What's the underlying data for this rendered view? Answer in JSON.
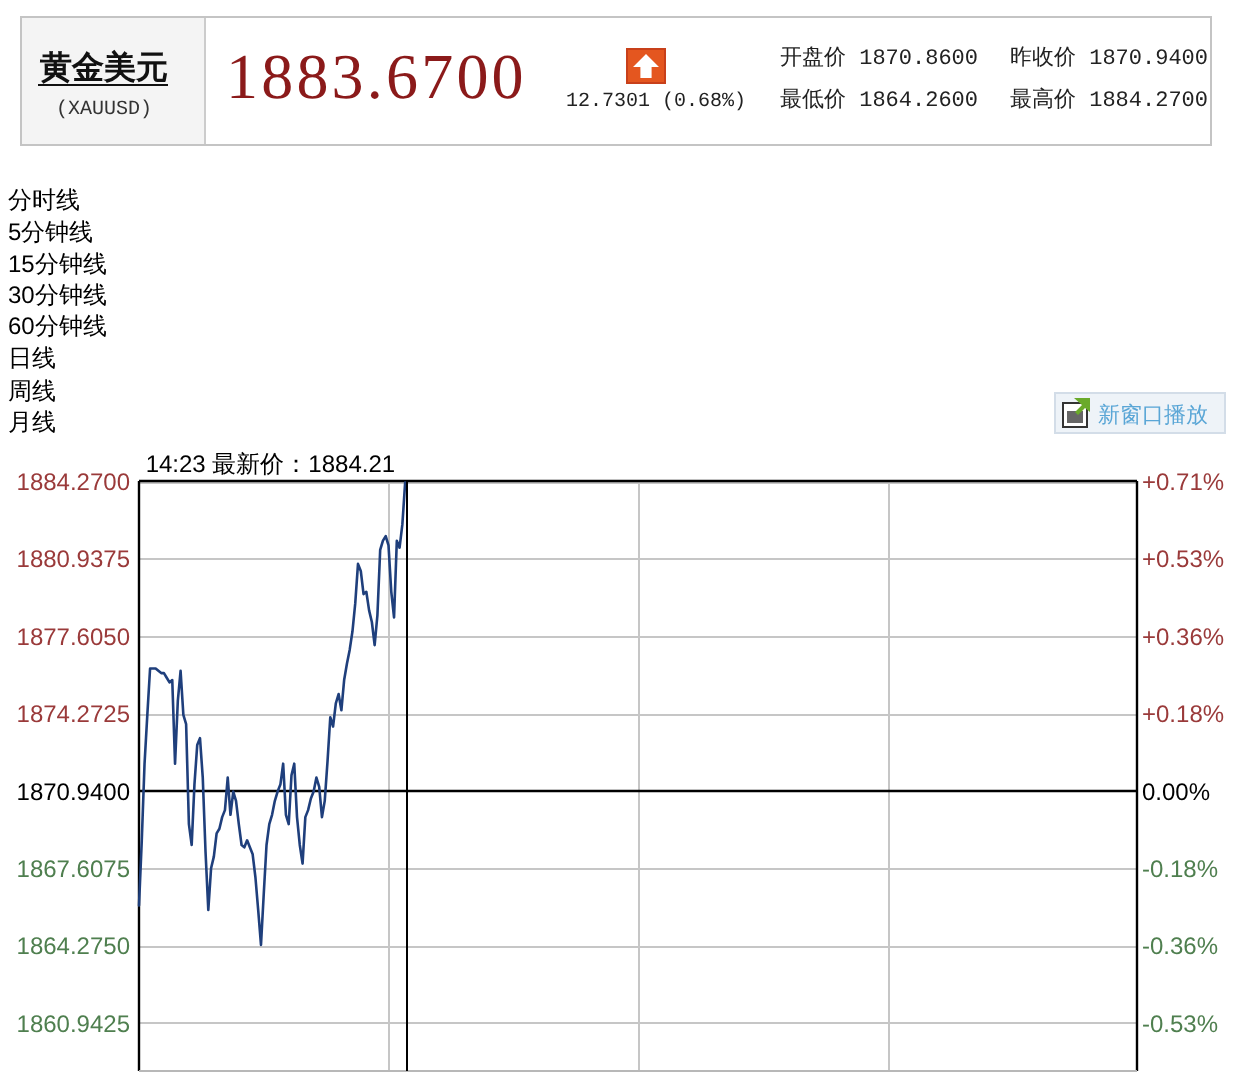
{
  "chart_data": {
    "type": "line",
    "title": "黄金美元",
    "subtitle": "(XAUUSD)",
    "annotations": [
      "1883.6700",
      "12.7301 (0.68%)",
      "开盘价 1870.8600",
      "昨收价 1870.9400",
      "最低价 1864.2600",
      "最高价 1884.2700",
      "分时线",
      "5分钟线",
      "15分钟线",
      "30分钟线",
      "60分钟线",
      "日线",
      "周线",
      "月线",
      "新窗口播放",
      "14:23 最新价：1884.21"
    ],
    "categories": [
      null,
      null,
      null,
      null,
      null,
      null,
      null,
      null,
      null,
      null,
      null,
      null,
      null,
      null,
      null,
      null,
      null,
      null,
      null,
      null,
      null,
      null,
      null,
      null,
      null,
      null,
      null,
      null,
      null,
      null,
      null,
      null,
      null,
      null,
      null,
      null,
      null,
      null,
      null,
      null,
      null,
      null,
      null,
      null,
      null,
      null,
      null,
      null,
      null,
      null,
      null,
      null,
      null,
      null,
      null,
      null,
      null,
      null,
      null,
      null,
      null,
      null,
      null,
      null,
      null,
      null,
      null,
      null,
      null,
      null,
      null,
      null,
      null,
      null,
      null,
      null,
      null,
      null,
      null,
      null,
      null,
      null,
      null,
      null,
      null,
      null,
      null,
      null,
      null,
      null,
      null,
      null,
      null,
      null,
      null,
      null,
      null,
      null,
      null,
      null,
      null,
      null,
      null,
      null,
      null,
      null,
      null,
      null,
      null,
      null,
      null,
      null,
      null,
      null,
      null,
      null,
      null,
      null,
      null,
      null,
      null,
      null,
      null,
      null,
      null,
      null,
      null,
      null,
      null,
      null,
      null,
      null,
      null,
      null,
      null,
      null,
      null,
      null,
      null,
      null,
      null,
      null,
      null,
      null,
      null,
      null,
      null,
      null,
      null,
      null,
      null,
      null,
      null,
      null,
      null,
      null,
      null,
      null,
      null,
      null,
      null,
      null,
      null,
      null,
      null,
      null,
      null,
      null,
      null,
      null,
      null,
      null,
      null,
      null,
      null,
      null,
      null,
      null,
      null,
      null,
      null,
      null,
      null,
      null,
      null,
      null,
      null,
      null,
      null,
      null,
      null,
      null,
      null,
      null,
      null,
      null,
      null,
      null,
      null,
      null,
      null,
      null,
      null,
      null,
      null,
      null,
      null,
      null,
      null,
      null,
      null,
      null,
      null,
      null,
      null,
      null,
      null,
      null,
      null,
      null,
      null,
      null,
      null,
      null,
      null,
      null,
      null,
      null,
      null,
      null,
      null,
      null,
      null,
      null,
      null,
      null,
      null,
      null,
      null,
      null,
      null,
      null,
      null,
      null,
      null,
      null,
      null,
      null,
      null,
      null,
      null,
      null,
      null,
      null,
      null,
      null,
      null,
      null,
      null,
      null,
      null,
      null,
      null,
      null,
      null,
      null,
      null,
      null,
      null,
      null,
      null,
      null,
      null,
      null,
      null,
      null,
      null,
      null,
      null,
      null,
      null,
      null,
      null,
      null,
      null,
      null,
      null,
      null,
      null,
      null,
      null,
      null,
      null,
      null,
      null,
      null,
      null,
      null,
      null,
      null,
      null,
      null,
      null,
      null,
      null,
      null,
      null,
      null,
      null,
      null,
      null,
      null,
      null,
      null,
      null,
      null,
      null,
      null,
      null,
      null,
      null,
      null,
      null,
      null,
      null,
      null,
      null,
      null,
      null,
      null,
      null,
      null,
      null,
      null,
      null,
      null,
      null,
      null,
      null,
      null,
      null,
      null,
      null,
      null,
      null,
      null,
      null,
      null,
      null,
      null,
      null,
      null,
      null,
      null,
      null,
      null,
      null,
      null,
      null,
      null,
      null
    ],
    "values": [
      1866.0,
      1868.8,
      1872.1,
      1874.2,
      1876.2,
      1876.2,
      1876.2,
      1876.1,
      1876.0,
      1876.0,
      1875.8,
      1875.6,
      1875.7,
      1872.1,
      1874.8,
      1876.1,
      1874.2,
      1873.8,
      1869.5,
      1868.6,
      1871.2,
      1872.9,
      1873.2,
      1871.5,
      1868.3,
      1865.8,
      1867.6,
      1868.1,
      1869.1,
      1869.3,
      1869.8,
      1870.1,
      1871.5,
      1869.9,
      1870.9,
      1870.5,
      1869.5,
      1868.6,
      1868.5,
      1868.8,
      1868.5,
      1868.2,
      1867.2,
      1865.8,
      1864.3,
      1866.5,
      1868.6,
      1869.5,
      1869.9,
      1870.5,
      1870.9,
      1871.2,
      1872.1,
      1869.9,
      1869.5,
      1871.6,
      1872.1,
      1869.8,
      1868.6,
      1867.8,
      1869.8,
      1870.1,
      1870.6,
      1870.9,
      1871.5,
      1871.1,
      1869.8,
      1870.5,
      1872.2,
      1874.1,
      1873.7,
      1874.7,
      1875.1,
      1874.4,
      1875.7,
      1876.4,
      1877.0,
      1877.8,
      1879.0,
      1880.7,
      1880.4,
      1879.4,
      1879.5,
      1878.7,
      1878.2,
      1877.2,
      1878.5,
      1881.3,
      1881.7,
      1881.9,
      1881.5,
      1879.5,
      1878.4,
      1881.7,
      1881.4,
      1882.4,
      1884.2,
      null,
      null,
      null,
      null,
      null,
      null,
      null,
      null,
      null,
      null,
      null,
      null,
      null,
      null,
      null,
      null,
      null,
      null,
      null,
      null,
      null,
      null,
      null,
      null,
      null,
      null,
      null,
      null,
      null,
      null,
      null,
      null,
      null,
      null,
      null,
      null,
      null,
      null,
      null,
      null,
      null,
      null,
      null,
      null,
      null,
      null,
      null,
      null,
      null,
      null,
      null,
      null,
      null,
      null,
      null,
      null,
      null,
      null,
      null,
      null,
      null,
      null,
      null,
      null,
      null,
      null,
      null,
      null,
      null,
      null,
      null,
      null,
      null,
      null,
      null,
      null,
      null,
      null,
      null,
      null,
      null,
      null,
      null,
      null,
      null,
      null,
      null,
      null,
      null,
      null,
      null,
      null,
      null,
      null,
      null,
      null,
      null,
      null,
      null,
      null,
      null,
      null,
      null,
      null,
      null,
      null,
      null,
      null,
      null,
      null,
      null,
      null,
      null,
      null,
      null,
      null,
      null,
      null,
      null,
      null,
      null,
      null,
      null,
      null,
      null,
      null,
      null,
      null,
      null,
      null,
      null,
      null,
      null,
      null,
      null,
      null,
      null,
      null,
      null,
      null,
      null,
      null,
      null,
      null,
      null,
      null,
      null,
      null,
      null,
      null,
      null,
      null,
      null,
      null,
      null,
      null,
      null,
      null,
      null,
      null,
      null,
      null,
      null,
      null,
      null,
      null,
      null,
      null,
      null,
      null,
      null,
      null,
      null,
      null,
      null,
      null,
      null,
      null,
      null,
      null,
      null,
      null,
      null,
      null,
      null,
      null,
      null,
      null,
      null,
      null,
      null,
      null,
      null,
      null,
      null,
      null,
      null,
      null,
      null,
      null,
      null,
      null,
      null,
      null,
      null,
      null,
      null,
      null,
      null,
      null,
      null,
      null,
      null,
      null,
      null,
      null,
      null,
      null,
      null,
      null,
      null,
      null,
      null,
      null,
      null,
      null,
      null,
      null,
      null,
      null,
      null,
      null,
      null,
      null,
      null,
      null,
      null,
      null,
      null,
      null,
      null,
      null,
      null,
      null,
      null,
      null,
      null,
      null,
      null,
      null,
      null,
      null,
      null,
      null,
      null,
      null,
      null,
      null,
      null,
      null,
      null,
      null,
      null,
      null
    ],
    "color": "#1f3f7c",
    "ylim": [
      1858.87,
      1884.27
    ],
    "yticks": [
      {
        "value": 1884.27,
        "label": "1884.2700"
      },
      1880.9375,
      {
        "value": 1877.605,
        "label": "1877.6050"
      },
      1874.2725,
      {
        "value": 1870.94,
        "label": "1870.9400"
      },
      1867.6075,
      {
        "value": 1864.275,
        "label": "1864.2750"
      },
      1860.9425
    ],
    "y2lim": [
      -0.6451,
      0.7125
    ],
    "y2ticks": [
      {
        "value": 0.7125,
        "label": "+0.71%"
      },
      {
        "value": 0.5344,
        "label": "+0.53%"
      },
      {
        "value": 0.3562,
        "label": "+0.36%"
      },
      {
        "value": 0.1781,
        "label": "+0.18%"
      },
      {
        "value": 0,
        "label": "0.00%"
      },
      {
        "value": -0.1781,
        "label": "-0.18%"
      },
      {
        "value": -0.3562,
        "label": "-0.36%"
      },
      {
        "value": -0.5344,
        "label": "-0.53%"
      }
    ],
    "grid": true,
    "ref_lines": [
      {
        "axis": "y",
        "value": 1870.94,
        "color": "#000000"
      }
    ]
  }
}
